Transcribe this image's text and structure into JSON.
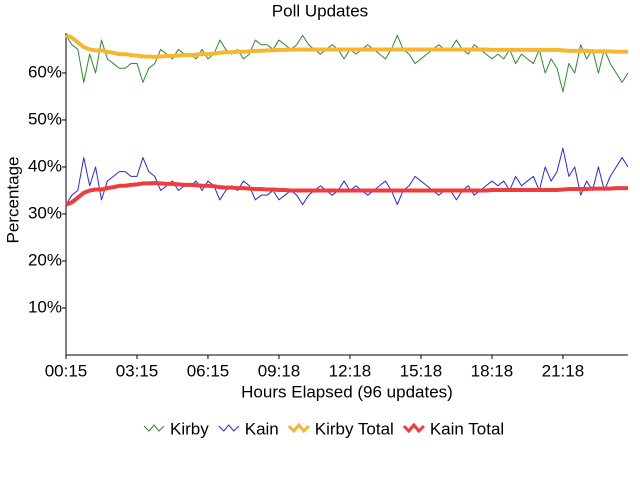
{
  "chart_data": {
    "type": "line",
    "title": "Poll Updates",
    "x_label": "Hours Elapsed (96 updates)",
    "y_label": "Percentage",
    "categories": [
      "00:15",
      null,
      null,
      null,
      null,
      null,
      null,
      null,
      null,
      null,
      null,
      null,
      "03:15",
      null,
      null,
      null,
      null,
      null,
      null,
      null,
      null,
      null,
      null,
      null,
      "06:15",
      null,
      null,
      null,
      null,
      null,
      null,
      null,
      null,
      null,
      null,
      null,
      "09:18",
      null,
      null,
      null,
      null,
      null,
      null,
      null,
      null,
      null,
      null,
      null,
      "12:18",
      null,
      null,
      null,
      null,
      null,
      null,
      null,
      null,
      null,
      null,
      null,
      "15:18",
      null,
      null,
      null,
      null,
      null,
      null,
      null,
      null,
      null,
      null,
      null,
      "18:18",
      null,
      null,
      null,
      null,
      null,
      null,
      null,
      null,
      null,
      null,
      null,
      "21:18",
      null,
      null,
      null,
      null,
      null,
      null,
      null,
      null,
      null,
      null,
      null
    ],
    "ylim": [
      0,
      68.5
    ],
    "yticks": [
      {
        "value": 10,
        "label": "10%"
      },
      {
        "value": 20,
        "label": "20%"
      },
      {
        "value": 30,
        "label": "30%"
      },
      {
        "value": 40,
        "label": "40%"
      },
      {
        "value": 50,
        "label": "50%"
      },
      {
        "value": 60,
        "label": "60%"
      }
    ],
    "grid": false,
    "legend": "bottom",
    "series": [
      {
        "name": "Kirby",
        "color": "#2e8b2e",
        "width": 1,
        "values": [
          68,
          66,
          65,
          58,
          64,
          60,
          67,
          63,
          62,
          61,
          61,
          62,
          62,
          58,
          61,
          62,
          65,
          64,
          63,
          65,
          64,
          64,
          63,
          65,
          63,
          64,
          67,
          65,
          64,
          65,
          63,
          64,
          67,
          66,
          66,
          65,
          67,
          66,
          65,
          66,
          68,
          66,
          65,
          64,
          65,
          66,
          65,
          63,
          65,
          64,
          65,
          66,
          65,
          64,
          63,
          65,
          68,
          65,
          64,
          62,
          63,
          64,
          65,
          66,
          65,
          65,
          67,
          65,
          64,
          66,
          65,
          64,
          63,
          64,
          63,
          65,
          62,
          64,
          63,
          62,
          65,
          60,
          63,
          61,
          56,
          62,
          60,
          66,
          63,
          65,
          60,
          65,
          62,
          60,
          58,
          60
        ]
      },
      {
        "name": "Kain",
        "color": "#2a2ae0",
        "width": 1,
        "values": [
          32,
          34,
          35,
          42,
          36,
          40,
          33,
          37,
          38,
          39,
          39,
          38,
          38,
          42,
          39,
          38,
          35,
          36,
          37,
          35,
          36,
          36,
          37,
          35,
          37,
          36,
          33,
          35,
          36,
          35,
          37,
          36,
          33,
          34,
          34,
          35,
          33,
          34,
          35,
          34,
          32,
          34,
          35,
          36,
          35,
          34,
          35,
          37,
          35,
          36,
          35,
          34,
          35,
          36,
          37,
          35,
          32,
          35,
          36,
          38,
          37,
          36,
          35,
          34,
          35,
          35,
          33,
          35,
          36,
          34,
          35,
          36,
          37,
          36,
          37,
          35,
          38,
          36,
          37,
          38,
          35,
          40,
          37,
          39,
          44,
          38,
          40,
          34,
          37,
          35,
          40,
          35,
          38,
          40,
          42,
          40
        ]
      },
      {
        "name": "Kirby Total",
        "color": "#f5b731",
        "width": 4,
        "values": [
          68,
          67.5,
          66.5,
          65.5,
          65,
          64.8,
          64.8,
          64.5,
          64.3,
          64,
          64,
          63.8,
          63.7,
          63.5,
          63.5,
          63.4,
          63.5,
          63.6,
          63.6,
          63.7,
          63.8,
          63.8,
          63.9,
          64,
          64,
          64.1,
          64.3,
          64.4,
          64.4,
          64.5,
          64.5,
          64.6,
          64.7,
          64.7,
          64.8,
          64.8,
          64.9,
          64.9,
          65,
          65,
          65,
          65,
          65,
          65,
          65,
          65,
          65,
          65,
          65,
          65,
          65,
          65,
          65,
          65,
          65,
          65,
          65,
          65,
          65,
          65,
          65,
          65,
          65,
          65,
          65,
          65,
          65,
          65,
          65,
          65,
          65,
          65,
          64.9,
          64.9,
          64.9,
          64.9,
          64.9,
          64.9,
          64.9,
          64.9,
          64.9,
          64.9,
          64.9,
          64.9,
          64.8,
          64.7,
          64.7,
          64.7,
          64.7,
          64.6,
          64.6,
          64.6,
          64.6,
          64.5,
          64.5,
          64.5
        ]
      },
      {
        "name": "Kain Total",
        "color": "#f03c3c",
        "width": 4,
        "values": [
          32,
          32.5,
          33.5,
          34.5,
          35,
          35.2,
          35.2,
          35.5,
          35.7,
          36,
          36,
          36.2,
          36.3,
          36.5,
          36.5,
          36.6,
          36.5,
          36.4,
          36.4,
          36.3,
          36.2,
          36.2,
          36.1,
          36,
          36,
          35.9,
          35.7,
          35.6,
          35.6,
          35.5,
          35.5,
          35.4,
          35.3,
          35.3,
          35.2,
          35.2,
          35.1,
          35.1,
          35,
          35,
          35,
          35,
          35,
          35,
          35,
          35,
          35,
          35,
          35,
          35,
          35,
          35,
          35,
          35,
          35,
          35,
          35,
          35,
          35,
          35,
          35,
          35,
          35,
          35,
          35,
          35,
          35,
          35,
          35,
          35,
          35,
          35,
          35.1,
          35.1,
          35.1,
          35.1,
          35.1,
          35.1,
          35.1,
          35.1,
          35.1,
          35.1,
          35.1,
          35.1,
          35.2,
          35.3,
          35.3,
          35.3,
          35.3,
          35.4,
          35.4,
          35.4,
          35.4,
          35.5,
          35.5,
          35.5
        ]
      }
    ]
  }
}
